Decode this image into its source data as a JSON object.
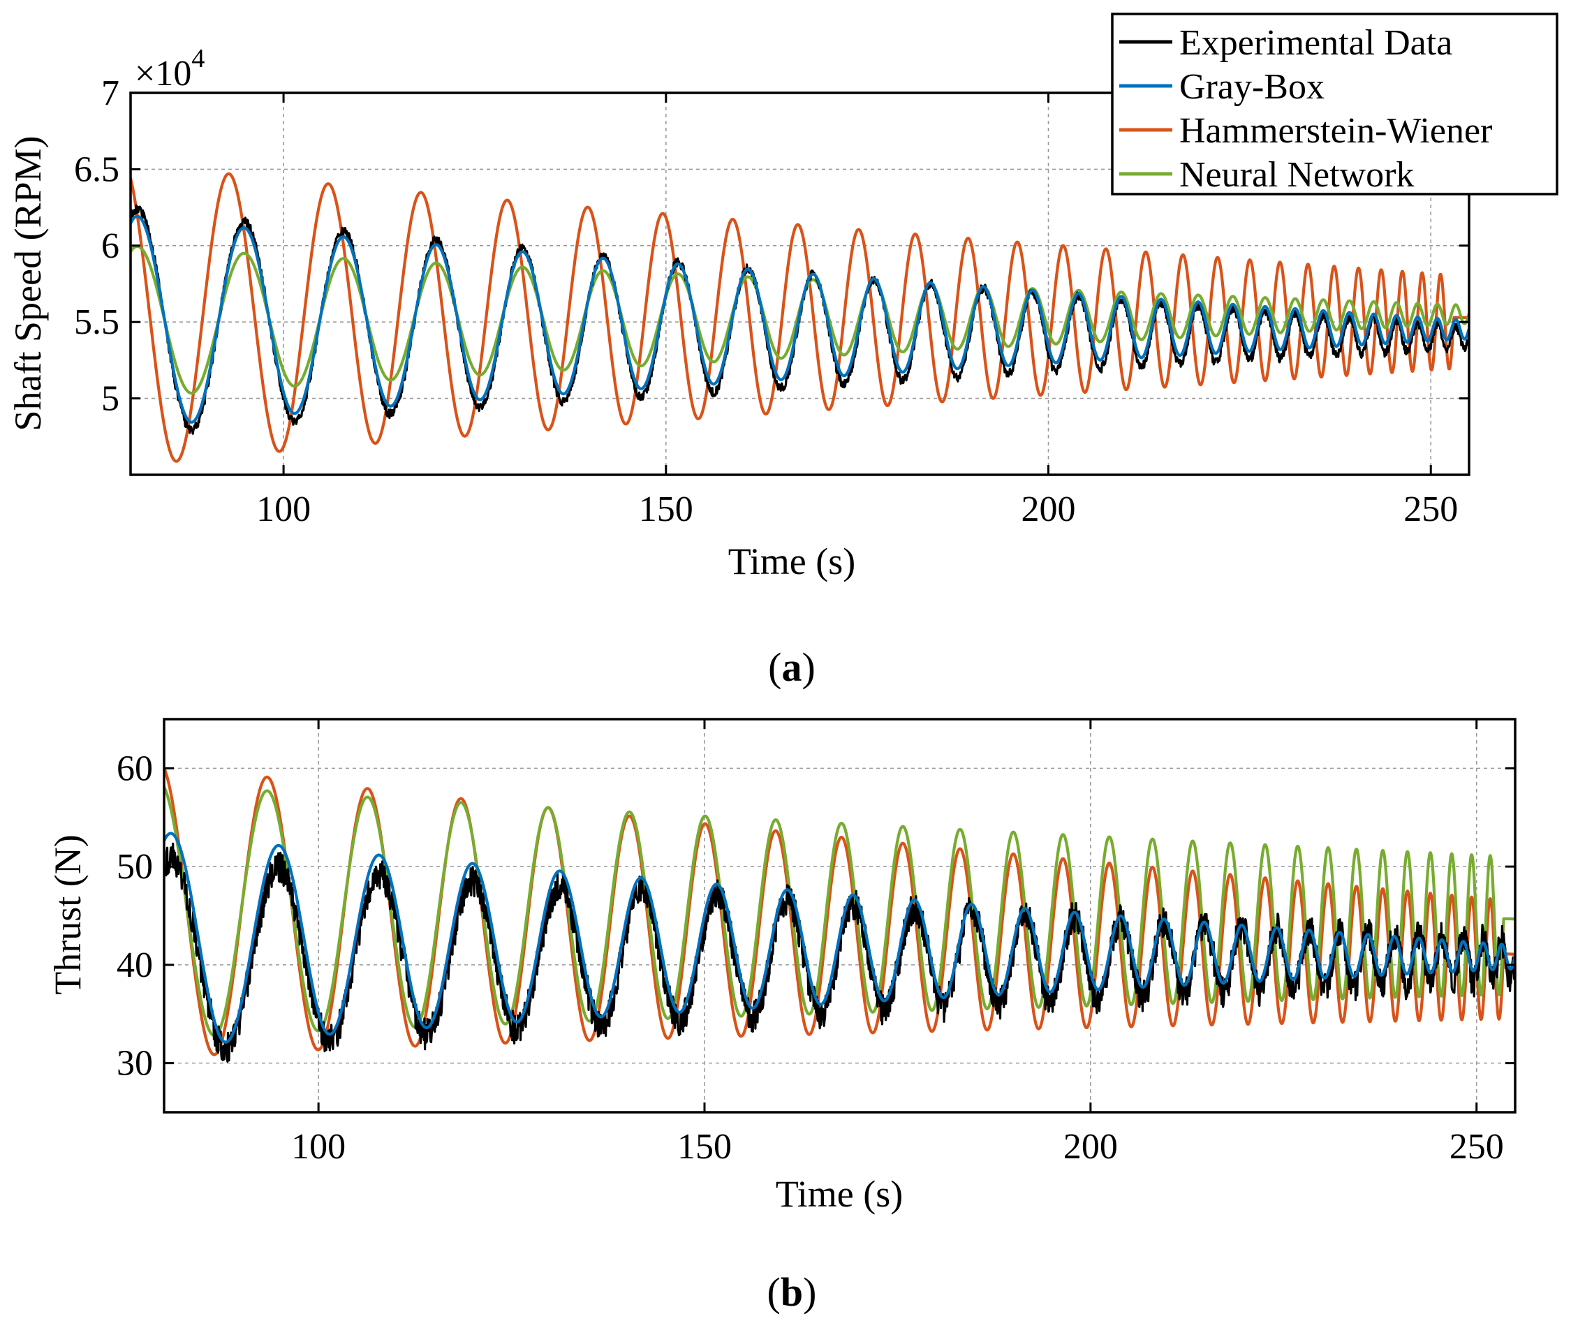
{
  "chart_data": [
    {
      "type": "line",
      "panel_label": "a",
      "xlabel": "Time (s)",
      "ylabel": "Shaft Speed (RPM)",
      "y_exponent_label": "×10",
      "y_exponent_power": "4",
      "xlim": [
        80,
        255
      ],
      "ylim": [
        4.5,
        7
      ],
      "x_ticks": [
        100,
        150,
        200,
        250
      ],
      "x_tick_labels": [
        "100",
        "150",
        "200",
        "250"
      ],
      "y_ticks": [
        5,
        5.5,
        6,
        6.5,
        7
      ],
      "y_tick_labels": [
        "5",
        "5.5",
        "6",
        "6.5",
        "7"
      ],
      "grid": true,
      "legend": "top-right, outside the axes",
      "legend_entries": [
        "Experimental Data",
        "Gray-Box",
        "Hammerstein-Wiener",
        "Neural Network"
      ],
      "series": [
        {
          "name": "Experimental Data",
          "color": "#000000",
          "mean": 5.5,
          "start_amplitude": 0.75,
          "end_amplitude": 0.07,
          "end_mean": 5.4,
          "noise": 0.03
        },
        {
          "name": "Gray-Box",
          "color": "#0072BD",
          "mean": 5.5,
          "start_amplitude": 0.7,
          "end_amplitude": 0.06,
          "end_mean": 5.45
        },
        {
          "name": "Hammerstein-Wiener",
          "color": "#D95319",
          "mean": 5.55,
          "start_amplitude": 1.0,
          "end_amplitude": 0.3,
          "end_mean": 5.5,
          "phase_lead_s": 2.0
        },
        {
          "name": "Neural Network",
          "color": "#77AC30",
          "mean": 5.5,
          "start_amplitude": 0.5,
          "end_amplitude": 0.06,
          "end_mean": 5.55
        }
      ]
    },
    {
      "type": "line",
      "panel_label": "b",
      "xlabel": "Time (s)",
      "ylabel": "Thrust (N)",
      "xlim": [
        80,
        255
      ],
      "ylim": [
        25,
        65
      ],
      "x_ticks": [
        100,
        150,
        200,
        250
      ],
      "x_tick_labels": [
        "100",
        "150",
        "200",
        "250"
      ],
      "y_ticks": [
        30,
        40,
        50,
        60
      ],
      "y_tick_labels": [
        "30",
        "40",
        "50",
        "60"
      ],
      "grid": true,
      "series": [
        {
          "name": "Experimental Data",
          "color": "#000000",
          "mean": 41,
          "start_amplitude": 10,
          "end_amplitude": 2,
          "end_mean": 40.5,
          "noise": 1.6
        },
        {
          "name": "Gray-Box",
          "color": "#0072BD",
          "mean": 42.5,
          "start_amplitude": 11,
          "end_amplitude": 1.2,
          "end_mean": 40.8
        },
        {
          "name": "Hammerstein-Wiener",
          "color": "#D95319",
          "mean": 45.5,
          "start_amplitude": 15,
          "end_amplitude": 6,
          "end_mean": 40.5,
          "phase_lead_s": 1.5
        },
        {
          "name": "Neural Network",
          "color": "#77AC30",
          "mean": 45.5,
          "start_amplitude": 13,
          "end_amplitude": 7,
          "end_mean": 44,
          "phase_lead_s": 1.5
        }
      ]
    }
  ]
}
